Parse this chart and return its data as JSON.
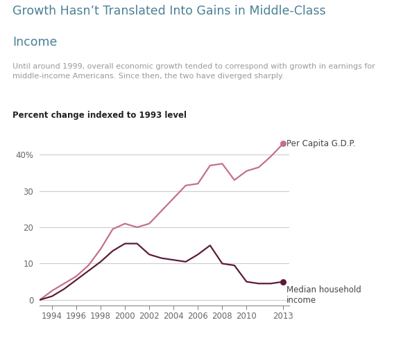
{
  "title_line1": "Growth Hasn’t Translated Into Gains in Middle-Class",
  "title_line2": "Income",
  "subtitle": "Until around 1999, overall economic growth tended to correspond with growth in earnings for\nmiddle-income Americans. Since then, the two have diverged sharply.",
  "axis_label": "Percent change indexed to 1993 level",
  "title_color": "#4a8096",
  "subtitle_color": "#999999",
  "axis_label_color": "#222222",
  "background_color": "#ffffff",
  "gdp_color": "#c4708a",
  "income_color": "#5c1a3b",
  "years_gdp": [
    1993,
    1994,
    1995,
    1996,
    1997,
    1998,
    1999,
    2000,
    2001,
    2002,
    2003,
    2004,
    2005,
    2006,
    2007,
    2008,
    2009,
    2010,
    2011,
    2012,
    2013
  ],
  "gdp_values": [
    0,
    2.5,
    4.5,
    6.5,
    9.5,
    14.0,
    19.5,
    21.0,
    20.0,
    21.0,
    24.5,
    28.0,
    31.5,
    32.0,
    37.0,
    37.5,
    33.0,
    35.5,
    36.5,
    39.5,
    43.0
  ],
  "years_income": [
    1993,
    1994,
    1995,
    1996,
    1997,
    1998,
    1999,
    2000,
    2001,
    2002,
    2003,
    2004,
    2005,
    2006,
    2007,
    2008,
    2009,
    2010,
    2011,
    2012,
    2013
  ],
  "income_values": [
    0,
    1.0,
    3.0,
    5.5,
    8.0,
    10.5,
    13.5,
    15.5,
    15.5,
    12.5,
    11.5,
    11.0,
    10.5,
    12.5,
    15.0,
    10.0,
    9.5,
    5.0,
    4.5,
    4.5,
    5.0
  ],
  "xlim": [
    1993.0,
    2013.5
  ],
  "ylim": [
    -1.5,
    46
  ],
  "yticks": [
    0,
    10,
    20,
    30,
    40
  ],
  "ytick_labels": [
    "0",
    "10",
    "20",
    "30",
    "40%"
  ],
  "xticks": [
    1994,
    1996,
    1998,
    2000,
    2002,
    2004,
    2006,
    2008,
    2010,
    2013
  ],
  "gdp_label": "Per Capita G.D.P.",
  "income_label": "Median household\nincome",
  "grid_color": "#cccccc",
  "line_width": 1.6,
  "label_color": "#444444"
}
